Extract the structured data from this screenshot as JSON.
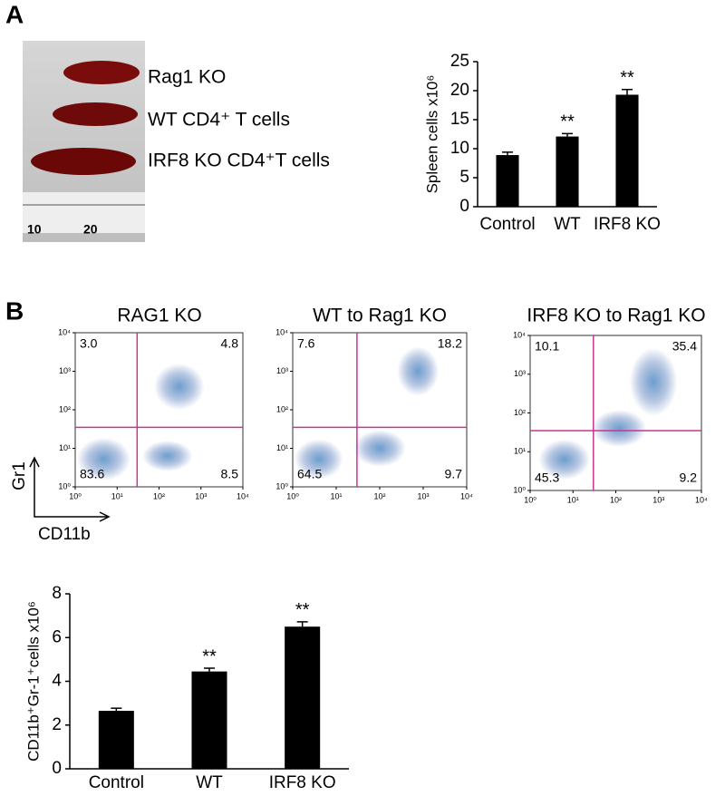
{
  "panel_labels": [
    "A",
    "B"
  ],
  "photo": {
    "labels": [
      "Rag1 KO",
      "WT CD4⁺ T cells",
      "IRF8  KO CD4⁺T cells"
    ],
    "ruler_labels": [
      "10",
      "20"
    ]
  },
  "flow_axis_labels": {
    "y": "Gr1",
    "x": "CD11b"
  },
  "chart_data": [
    {
      "type": "bar",
      "ylabel": "Spleen cells x10⁶",
      "categories": [
        "Control",
        "WT",
        "IRF8  KO"
      ],
      "values": [
        8.9,
        12.1,
        19.3
      ],
      "errors": [
        0.5,
        0.5,
        0.9
      ],
      "significance": [
        null,
        "**",
        "**"
      ],
      "color": "#000000",
      "ylim": [
        0,
        25
      ],
      "yticks": [
        0,
        5,
        10,
        15,
        20,
        25
      ]
    },
    {
      "type": "flow",
      "title": "RAG1 KO",
      "values": [
        3.0,
        4.8,
        83.6,
        8.5
      ],
      "value_labels": [
        "3.0",
        "4.8",
        "83.6",
        "8.5"
      ],
      "log": true,
      "xlim": [
        1,
        10000
      ],
      "ylim": [
        1,
        10000
      ],
      "x_gate": 30,
      "y_gate": 35,
      "color": "#c8358f",
      "xticks": [
        {
          "value": 1,
          "label": "10⁰"
        },
        {
          "value": 10,
          "label": "10¹"
        },
        {
          "value": 100,
          "label": "10²"
        },
        {
          "value": 1000,
          "label": "10³"
        },
        {
          "value": 10000,
          "label": "10⁴"
        }
      ],
      "yticks": [
        {
          "value": 1,
          "label": "10⁰"
        },
        {
          "value": 10,
          "label": "10¹"
        },
        {
          "value": 100,
          "label": "10²"
        },
        {
          "value": 1000,
          "label": "10³"
        },
        {
          "value": 10000,
          "label": "10⁴"
        }
      ]
    },
    {
      "type": "flow",
      "title": "WT to Rag1 KO",
      "values": [
        7.6,
        18.2,
        64.5,
        9.7
      ],
      "value_labels": [
        "7.6",
        "18.2",
        "64.5",
        "9.7"
      ],
      "log": true,
      "xlim": [
        1,
        10000
      ],
      "ylim": [
        1,
        10000
      ],
      "x_gate": 30,
      "y_gate": 35,
      "color": "#c8358f",
      "xticks": [
        {
          "value": 1,
          "label": "10⁰"
        },
        {
          "value": 10,
          "label": "10¹"
        },
        {
          "value": 100,
          "label": "10²"
        },
        {
          "value": 1000,
          "label": "10³"
        },
        {
          "value": 10000,
          "label": "10⁴"
        }
      ],
      "yticks": [
        {
          "value": 1,
          "label": "10⁰"
        },
        {
          "value": 10,
          "label": "10¹"
        },
        {
          "value": 100,
          "label": "10²"
        },
        {
          "value": 1000,
          "label": "10³"
        },
        {
          "value": 10000,
          "label": "10⁴"
        }
      ]
    },
    {
      "type": "flow",
      "title": "IRF8  KO to Rag1 KO",
      "values": [
        10.1,
        35.4,
        45.3,
        9.2
      ],
      "value_labels": [
        "10.1",
        "35.4",
        "45.3",
        "9.2"
      ],
      "log": true,
      "xlim": [
        1,
        10000
      ],
      "ylim": [
        1,
        10000
      ],
      "x_gate": 30,
      "y_gate": 35,
      "color": "#c8358f",
      "xticks": [
        {
          "value": 1,
          "label": "10⁰"
        },
        {
          "value": 10,
          "label": "10¹"
        },
        {
          "value": 100,
          "label": "10²"
        },
        {
          "value": 1000,
          "label": "10³"
        },
        {
          "value": 10000,
          "label": "10⁴"
        }
      ],
      "yticks": [
        {
          "value": 1,
          "label": "10⁰"
        },
        {
          "value": 10,
          "label": "10¹"
        },
        {
          "value": 100,
          "label": "10²"
        },
        {
          "value": 1000,
          "label": "10³"
        },
        {
          "value": 10000,
          "label": "10⁴"
        }
      ]
    },
    {
      "type": "bar",
      "ylabel": "CD11b⁺Gr-1⁺cells x10⁶",
      "categories": [
        "Control",
        "WT",
        "IRF8  KO"
      ],
      "values": [
        2.65,
        4.45,
        6.5
      ],
      "errors": [
        0.12,
        0.15,
        0.22
      ],
      "significance": [
        null,
        "**",
        "**"
      ],
      "color": "#000000",
      "ylim": [
        0,
        8
      ],
      "yticks": [
        0,
        2,
        4,
        6,
        8
      ]
    }
  ]
}
